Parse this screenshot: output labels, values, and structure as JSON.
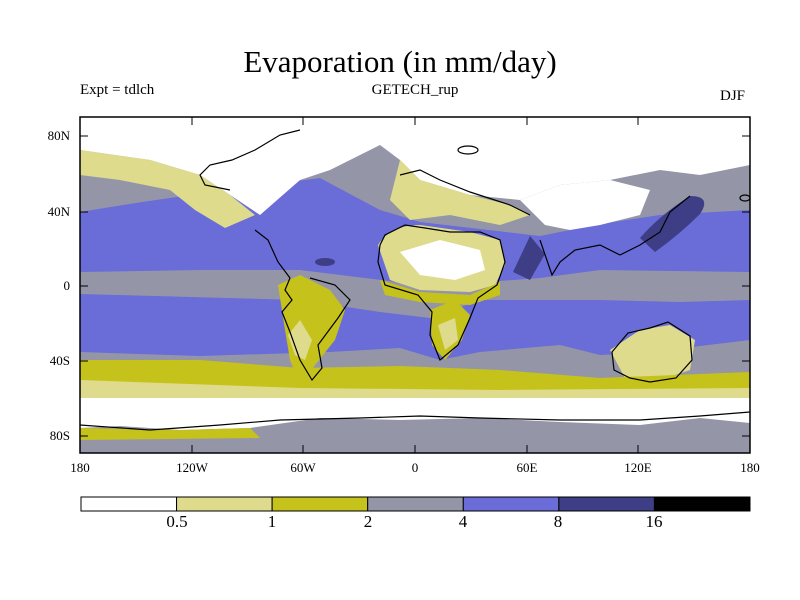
{
  "title": "Evaporation (in mm/day)",
  "subtitle_left": "Expt = tdlch",
  "subtitle_center": "GETECH_rup",
  "subtitle_right": "DJF",
  "lat_labels": [
    "80N",
    "40N",
    "0",
    "40S",
    "80S"
  ],
  "lon_labels": [
    "180",
    "120W",
    "60W",
    "0",
    "60E",
    "120E",
    "180"
  ],
  "colorbar": {
    "labels": [
      "0.5",
      "1",
      "2",
      "4",
      "8",
      "16"
    ],
    "colors": [
      "#ffffff",
      "#dedc8c",
      "#c6c21c",
      "#9496a8",
      "#6a6cd8",
      "#3e3e86",
      "#000000"
    ]
  },
  "map_colors": {
    "white": "#ffffff",
    "light": "#dedc8c",
    "olive": "#c6c21c",
    "gray": "#9496a8",
    "blue": "#6a6cd8",
    "dark": "#3e3e86"
  }
}
